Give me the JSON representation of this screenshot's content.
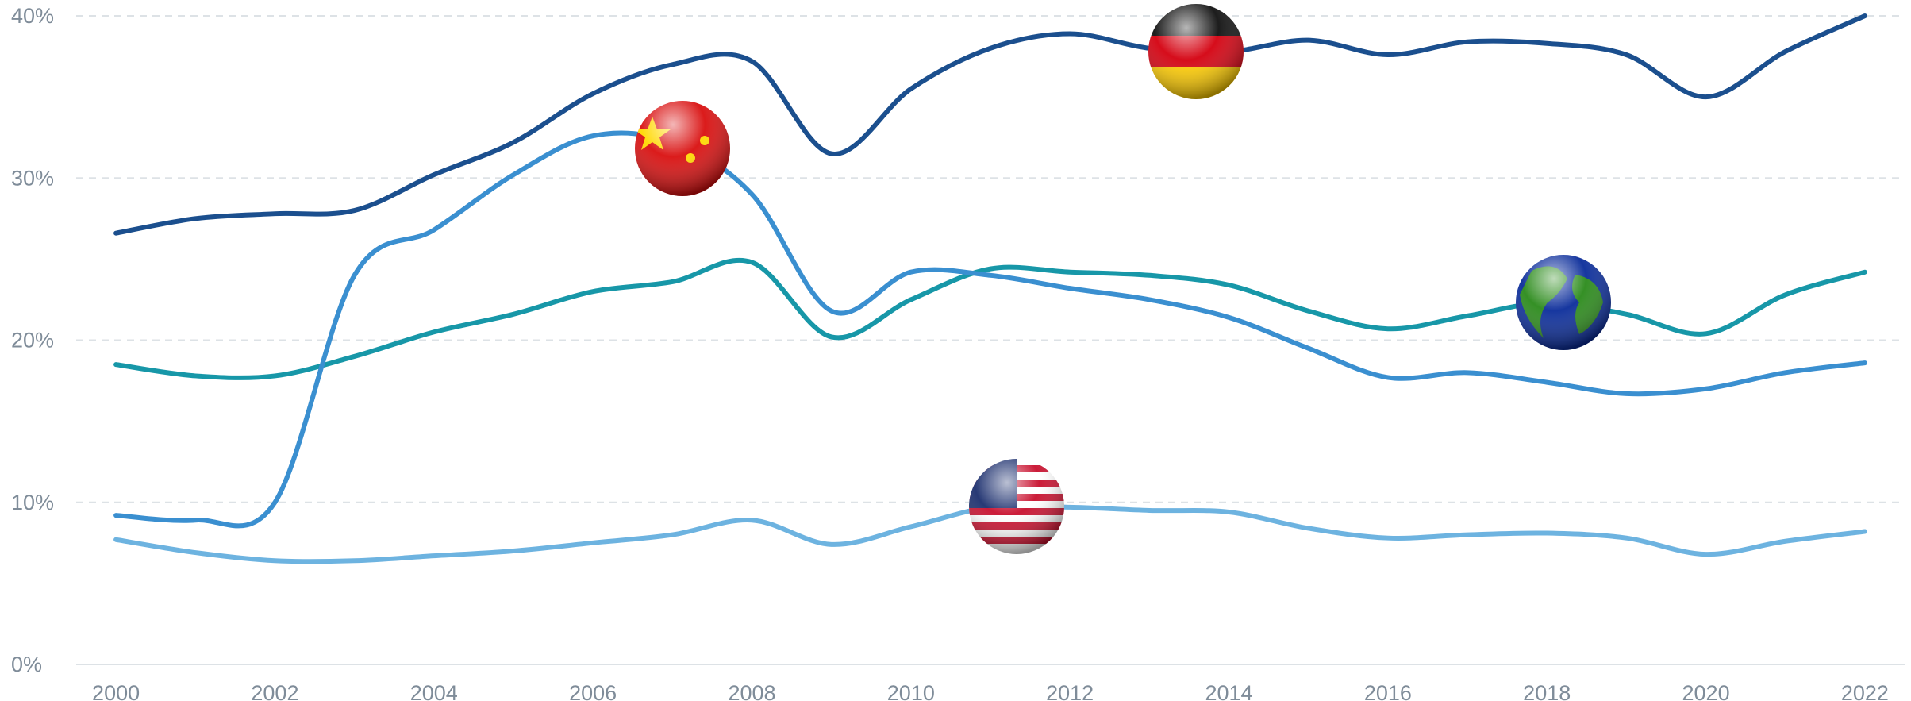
{
  "chart_data": {
    "type": "line",
    "x": [
      2000,
      2001,
      2002,
      2003,
      2004,
      2005,
      2006,
      2007,
      2008,
      2009,
      2010,
      2011,
      2012,
      2013,
      2014,
      2015,
      2016,
      2017,
      2018,
      2019,
      2020,
      2021,
      2022
    ],
    "series": [
      {
        "color": "#1b4f8e",
        "values": [
          26.6,
          27.5,
          27.8,
          28.0,
          30.2,
          32.2,
          35.2,
          37.0,
          37.2,
          31.5,
          35.5,
          38.0,
          38.9,
          38.0,
          37.8,
          38.5,
          37.6,
          38.4,
          38.3,
          37.6,
          35.0,
          37.8,
          40.0
        ]
      },
      {
        "color": "#3a8fd0",
        "values": [
          9.2,
          8.9,
          10.0,
          24.0,
          26.8,
          30.2,
          32.6,
          32.2,
          29.0,
          21.8,
          24.2,
          24.0,
          23.2,
          22.5,
          21.4,
          19.5,
          17.7,
          18.0,
          17.4,
          16.7,
          17.0,
          18.0,
          18.6
        ]
      },
      {
        "color": "#1797a8",
        "values": [
          18.5,
          17.8,
          17.8,
          19.0,
          20.5,
          21.6,
          23.0,
          23.6,
          24.8,
          20.2,
          22.5,
          24.4,
          24.2,
          24.0,
          23.4,
          21.8,
          20.7,
          21.5,
          22.3,
          21.6,
          20.4,
          22.8,
          24.2
        ]
      },
      {
        "color": "#6db3e0",
        "values": [
          7.7,
          6.9,
          6.4,
          6.4,
          6.7,
          7.0,
          7.5,
          8.0,
          8.9,
          7.4,
          8.5,
          9.7,
          9.7,
          9.5,
          9.4,
          8.4,
          7.8,
          8.0,
          8.1,
          7.8,
          6.8,
          7.6,
          8.2
        ]
      }
    ],
    "xlim": [
      1999.5,
      2022.5
    ],
    "xticks": [
      2000,
      2002,
      2004,
      2006,
      2008,
      2010,
      2012,
      2014,
      2016,
      2018,
      2020,
      2022
    ],
    "ylim": [
      0,
      40
    ],
    "yticks": [
      {
        "value": 0,
        "label": "0%"
      },
      {
        "value": 10,
        "label": "10%"
      },
      {
        "value": 20,
        "label": "20%"
      },
      {
        "value": 30,
        "label": "30%"
      },
      {
        "value": 40,
        "label": "40%"
      }
    ],
    "grid": true
  }
}
